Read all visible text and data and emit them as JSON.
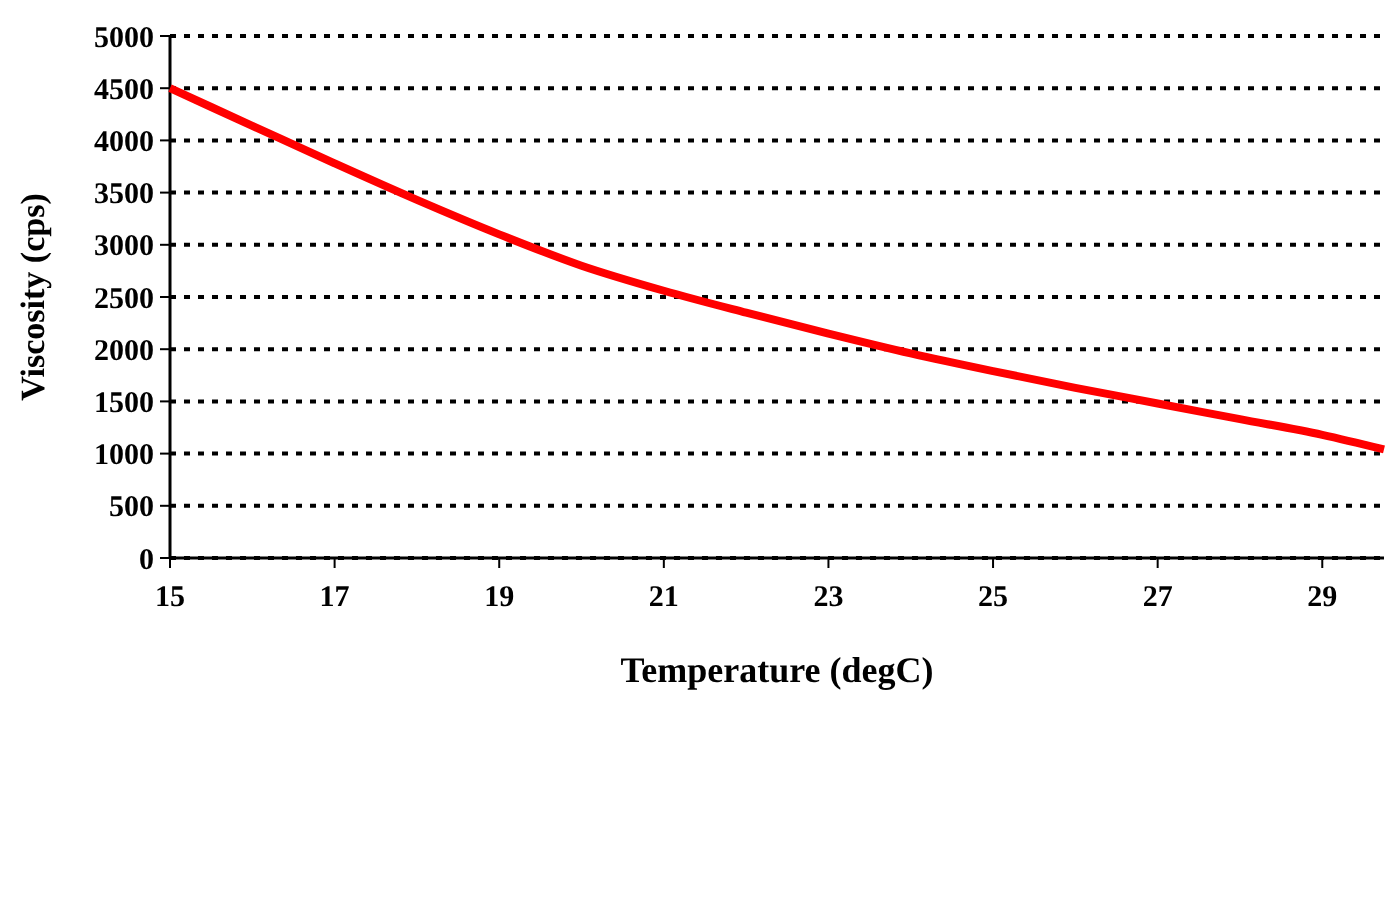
{
  "chart_data": {
    "type": "line",
    "xlabel": "Temperature (degC)",
    "ylabel": "Viscosity (cps)",
    "xlim": [
      15,
      29.75
    ],
    "xticks": [
      15,
      17,
      19,
      21,
      23,
      25,
      27,
      29
    ],
    "ylim": [
      0,
      5000
    ],
    "yticks": [
      0,
      500,
      1000,
      1500,
      2000,
      2500,
      3000,
      3500,
      4000,
      4500,
      5000
    ],
    "grid": "y",
    "marker": "none",
    "line_style": "solid",
    "series": [
      {
        "color": "#ff0000",
        "x": [
          15,
          16,
          17,
          18,
          19,
          20,
          21,
          22,
          23,
          24,
          25,
          26,
          27,
          28,
          29,
          29.75
        ],
        "values": [
          4500,
          4140,
          3780,
          3430,
          3100,
          2800,
          2560,
          2350,
          2150,
          1960,
          1790,
          1630,
          1480,
          1330,
          1180,
          1040
        ]
      }
    ]
  }
}
